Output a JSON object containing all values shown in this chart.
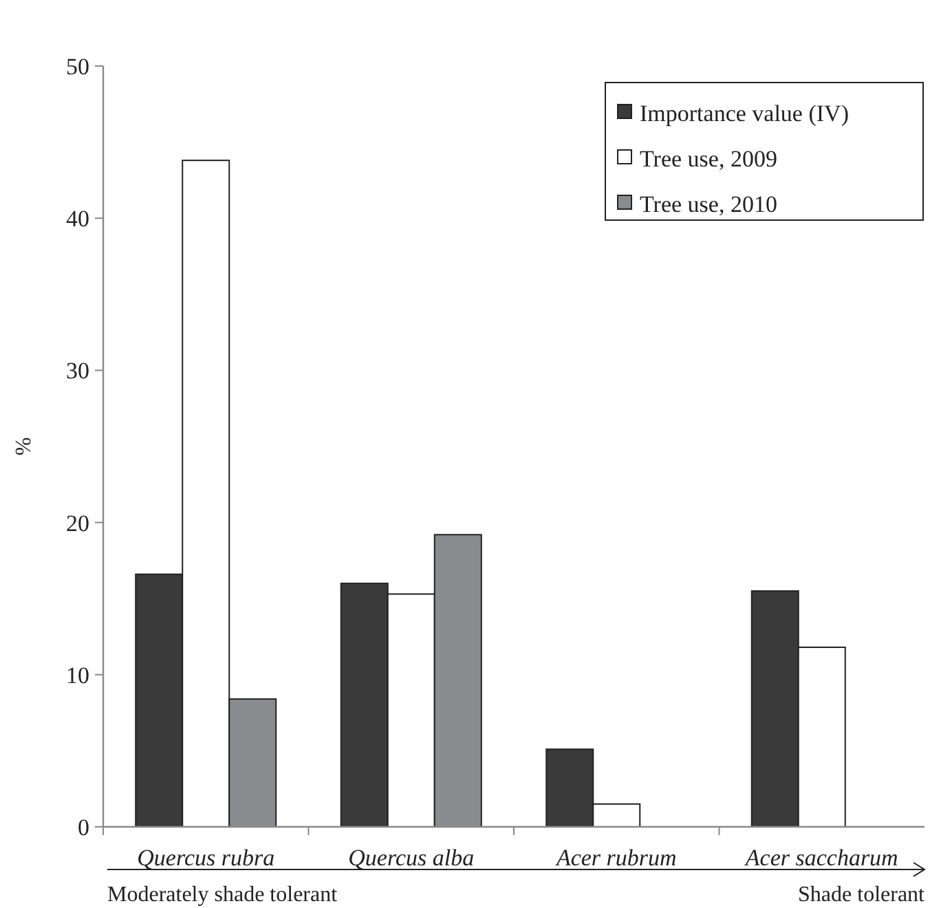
{
  "chart_data": {
    "type": "bar",
    "ylabel": "%",
    "categories": [
      "Quercus rubra",
      "Quercus alba",
      "Acer rubrum",
      "Acer saccharum"
    ],
    "series": [
      {
        "name": "Importance value (IV)",
        "color": "#3a3a3a",
        "values": [
          16.6,
          16.0,
          5.1,
          15.5
        ]
      },
      {
        "name": "Tree use, 2009",
        "color": "#ffffff",
        "values": [
          43.8,
          15.3,
          1.5,
          11.8
        ]
      },
      {
        "name": "Tree use, 2010",
        "color": "#8a8b8f",
        "values": [
          8.4,
          19.2,
          null,
          null
        ]
      }
    ],
    "ylim": [
      0,
      50
    ],
    "yticks": [
      0,
      10,
      20,
      30,
      40,
      50
    ],
    "grid": false,
    "legend": "top right",
    "annotations": [
      "Moderately shade tolerant",
      "Shade tolerant"
    ]
  }
}
